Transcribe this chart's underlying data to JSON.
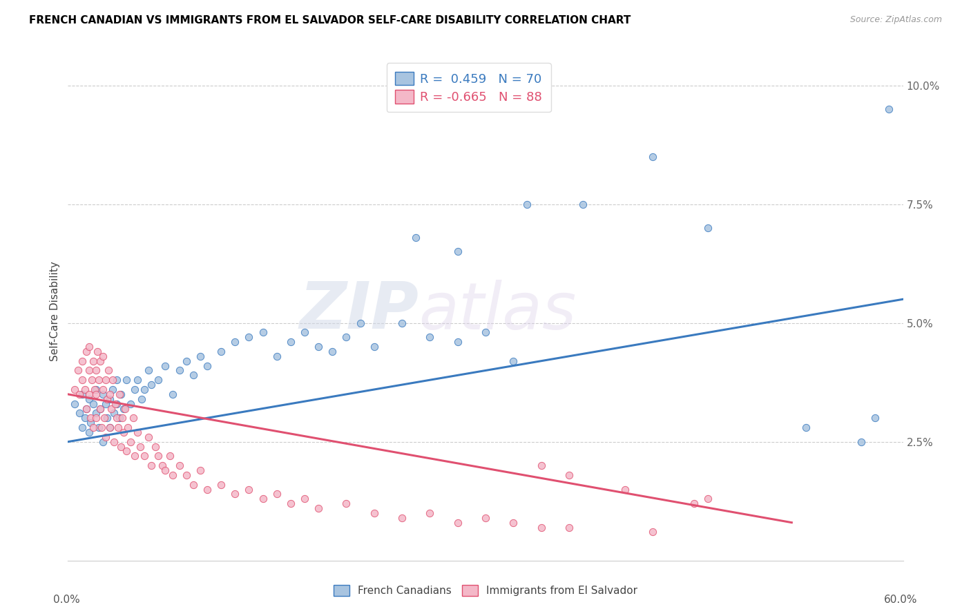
{
  "title": "FRENCH CANADIAN VS IMMIGRANTS FROM EL SALVADOR SELF-CARE DISABILITY CORRELATION CHART",
  "source": "Source: ZipAtlas.com",
  "ylabel": "Self-Care Disability",
  "xmin": 0.0,
  "xmax": 0.6,
  "ymin": 0.0,
  "ymax": 0.105,
  "blue_R": 0.459,
  "blue_N": 70,
  "pink_R": -0.665,
  "pink_N": 88,
  "blue_color": "#a8c4e0",
  "pink_color": "#f4b8c8",
  "blue_line_color": "#3a7abf",
  "pink_line_color": "#e05070",
  "watermark_zip": "ZIP",
  "watermark_atlas": "atlas",
  "blue_line_x0": 0.0,
  "blue_line_y0": 0.025,
  "blue_line_x1": 0.6,
  "blue_line_y1": 0.055,
  "pink_line_x0": 0.0,
  "pink_line_y0": 0.035,
  "pink_line_x1": 0.52,
  "pink_line_y1": 0.008,
  "blue_scatter_x": [
    0.005,
    0.008,
    0.01,
    0.01,
    0.012,
    0.013,
    0.015,
    0.015,
    0.016,
    0.018,
    0.02,
    0.02,
    0.022,
    0.023,
    0.025,
    0.025,
    0.027,
    0.028,
    0.03,
    0.03,
    0.032,
    0.033,
    0.035,
    0.035,
    0.037,
    0.038,
    0.04,
    0.042,
    0.045,
    0.048,
    0.05,
    0.053,
    0.055,
    0.058,
    0.06,
    0.065,
    0.07,
    0.075,
    0.08,
    0.085,
    0.09,
    0.095,
    0.1,
    0.11,
    0.12,
    0.13,
    0.14,
    0.15,
    0.16,
    0.17,
    0.18,
    0.19,
    0.2,
    0.21,
    0.22,
    0.24,
    0.26,
    0.28,
    0.3,
    0.32,
    0.25,
    0.28,
    0.33,
    0.37,
    0.42,
    0.46,
    0.53,
    0.57,
    0.58,
    0.59
  ],
  "blue_scatter_y": [
    0.033,
    0.031,
    0.035,
    0.028,
    0.03,
    0.032,
    0.034,
    0.027,
    0.029,
    0.033,
    0.031,
    0.036,
    0.028,
    0.032,
    0.035,
    0.025,
    0.033,
    0.03,
    0.034,
    0.028,
    0.036,
    0.031,
    0.033,
    0.038,
    0.03,
    0.035,
    0.032,
    0.038,
    0.033,
    0.036,
    0.038,
    0.034,
    0.036,
    0.04,
    0.037,
    0.038,
    0.041,
    0.035,
    0.04,
    0.042,
    0.039,
    0.043,
    0.041,
    0.044,
    0.046,
    0.047,
    0.048,
    0.043,
    0.046,
    0.048,
    0.045,
    0.044,
    0.047,
    0.05,
    0.045,
    0.05,
    0.047,
    0.046,
    0.048,
    0.042,
    0.068,
    0.065,
    0.075,
    0.075,
    0.085,
    0.07,
    0.028,
    0.025,
    0.03,
    0.095
  ],
  "pink_scatter_x": [
    0.005,
    0.007,
    0.008,
    0.01,
    0.01,
    0.012,
    0.013,
    0.013,
    0.015,
    0.015,
    0.015,
    0.016,
    0.017,
    0.018,
    0.018,
    0.019,
    0.02,
    0.02,
    0.02,
    0.021,
    0.022,
    0.023,
    0.023,
    0.024,
    0.025,
    0.025,
    0.026,
    0.027,
    0.027,
    0.028,
    0.029,
    0.03,
    0.03,
    0.031,
    0.032,
    0.033,
    0.034,
    0.035,
    0.036,
    0.037,
    0.038,
    0.039,
    0.04,
    0.041,
    0.042,
    0.043,
    0.045,
    0.047,
    0.048,
    0.05,
    0.052,
    0.055,
    0.058,
    0.06,
    0.063,
    0.065,
    0.068,
    0.07,
    0.073,
    0.075,
    0.08,
    0.085,
    0.09,
    0.095,
    0.1,
    0.11,
    0.12,
    0.13,
    0.14,
    0.15,
    0.16,
    0.17,
    0.18,
    0.2,
    0.22,
    0.24,
    0.26,
    0.28,
    0.3,
    0.32,
    0.34,
    0.36,
    0.42,
    0.34,
    0.36,
    0.4,
    0.45,
    0.46
  ],
  "pink_scatter_y": [
    0.036,
    0.04,
    0.035,
    0.038,
    0.042,
    0.036,
    0.044,
    0.032,
    0.04,
    0.035,
    0.045,
    0.03,
    0.038,
    0.042,
    0.028,
    0.036,
    0.04,
    0.035,
    0.03,
    0.044,
    0.038,
    0.032,
    0.042,
    0.028,
    0.036,
    0.043,
    0.03,
    0.038,
    0.026,
    0.034,
    0.04,
    0.028,
    0.035,
    0.032,
    0.038,
    0.025,
    0.033,
    0.03,
    0.028,
    0.035,
    0.024,
    0.03,
    0.027,
    0.032,
    0.023,
    0.028,
    0.025,
    0.03,
    0.022,
    0.027,
    0.024,
    0.022,
    0.026,
    0.02,
    0.024,
    0.022,
    0.02,
    0.019,
    0.022,
    0.018,
    0.02,
    0.018,
    0.016,
    0.019,
    0.015,
    0.016,
    0.014,
    0.015,
    0.013,
    0.014,
    0.012,
    0.013,
    0.011,
    0.012,
    0.01,
    0.009,
    0.01,
    0.008,
    0.009,
    0.008,
    0.007,
    0.007,
    0.006,
    0.02,
    0.018,
    0.015,
    0.012,
    0.013
  ]
}
